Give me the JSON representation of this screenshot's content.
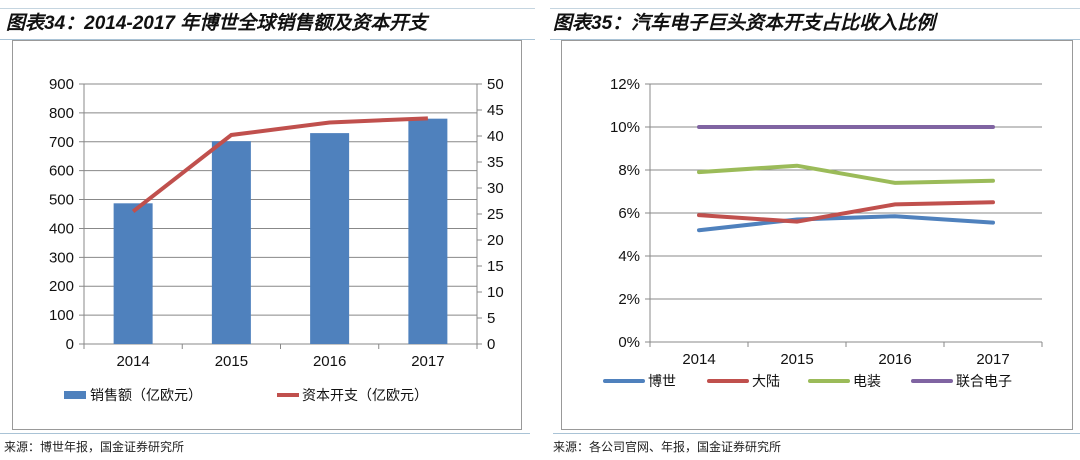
{
  "left": {
    "title": "图表34：2014-2017 年博世全球销售额及资本开支",
    "source": "来源：博世年报，国金证券研究所"
  },
  "right": {
    "title": "图表35：汽车电子巨头资本开支占比收入比例",
    "source": "来源：各公司官网、年报，国金证券研究所"
  },
  "chart_data": [
    {
      "type": "bar+line",
      "categories": [
        "2014",
        "2015",
        "2016",
        "2017"
      ],
      "series": [
        {
          "name": "销售额（亿欧元）",
          "type": "bar",
          "axis": "left",
          "color": "#4f81bd",
          "values": [
            487,
            702,
            730,
            780
          ]
        },
        {
          "name": "资本开支（亿欧元）",
          "type": "line",
          "axis": "right",
          "color": "#c0504d",
          "values": [
            25.5,
            40.2,
            42.6,
            43.4
          ]
        }
      ],
      "ylim": [
        0,
        900
      ],
      "yticks": [
        "0",
        "100",
        "200",
        "300",
        "400",
        "500",
        "600",
        "700",
        "800",
        "900"
      ],
      "y2lim": [
        0,
        50
      ],
      "y2ticks": [
        "0",
        "5",
        "10",
        "15",
        "20",
        "25",
        "30",
        "35",
        "40",
        "45",
        "50"
      ],
      "grid": true,
      "legend": "bottom"
    },
    {
      "type": "line",
      "categories": [
        "2014",
        "2015",
        "2016",
        "2017"
      ],
      "series": [
        {
          "name": "博世",
          "color": "#4f81bd",
          "values": [
            5.2,
            5.7,
            5.85,
            5.55
          ]
        },
        {
          "name": "大陆",
          "color": "#c0504d",
          "values": [
            5.9,
            5.6,
            6.4,
            6.5
          ]
        },
        {
          "name": "电装",
          "color": "#9bbb59",
          "values": [
            7.9,
            8.2,
            7.4,
            7.5
          ]
        },
        {
          "name": "联合电子",
          "color": "#8064a2",
          "values": [
            10,
            10,
            10,
            10
          ]
        }
      ],
      "ylim": [
        0,
        12
      ],
      "yticks": [
        "0%",
        "2%",
        "4%",
        "6%",
        "8%",
        "10%",
        "12%"
      ],
      "grid": true,
      "legend": "bottom"
    }
  ]
}
